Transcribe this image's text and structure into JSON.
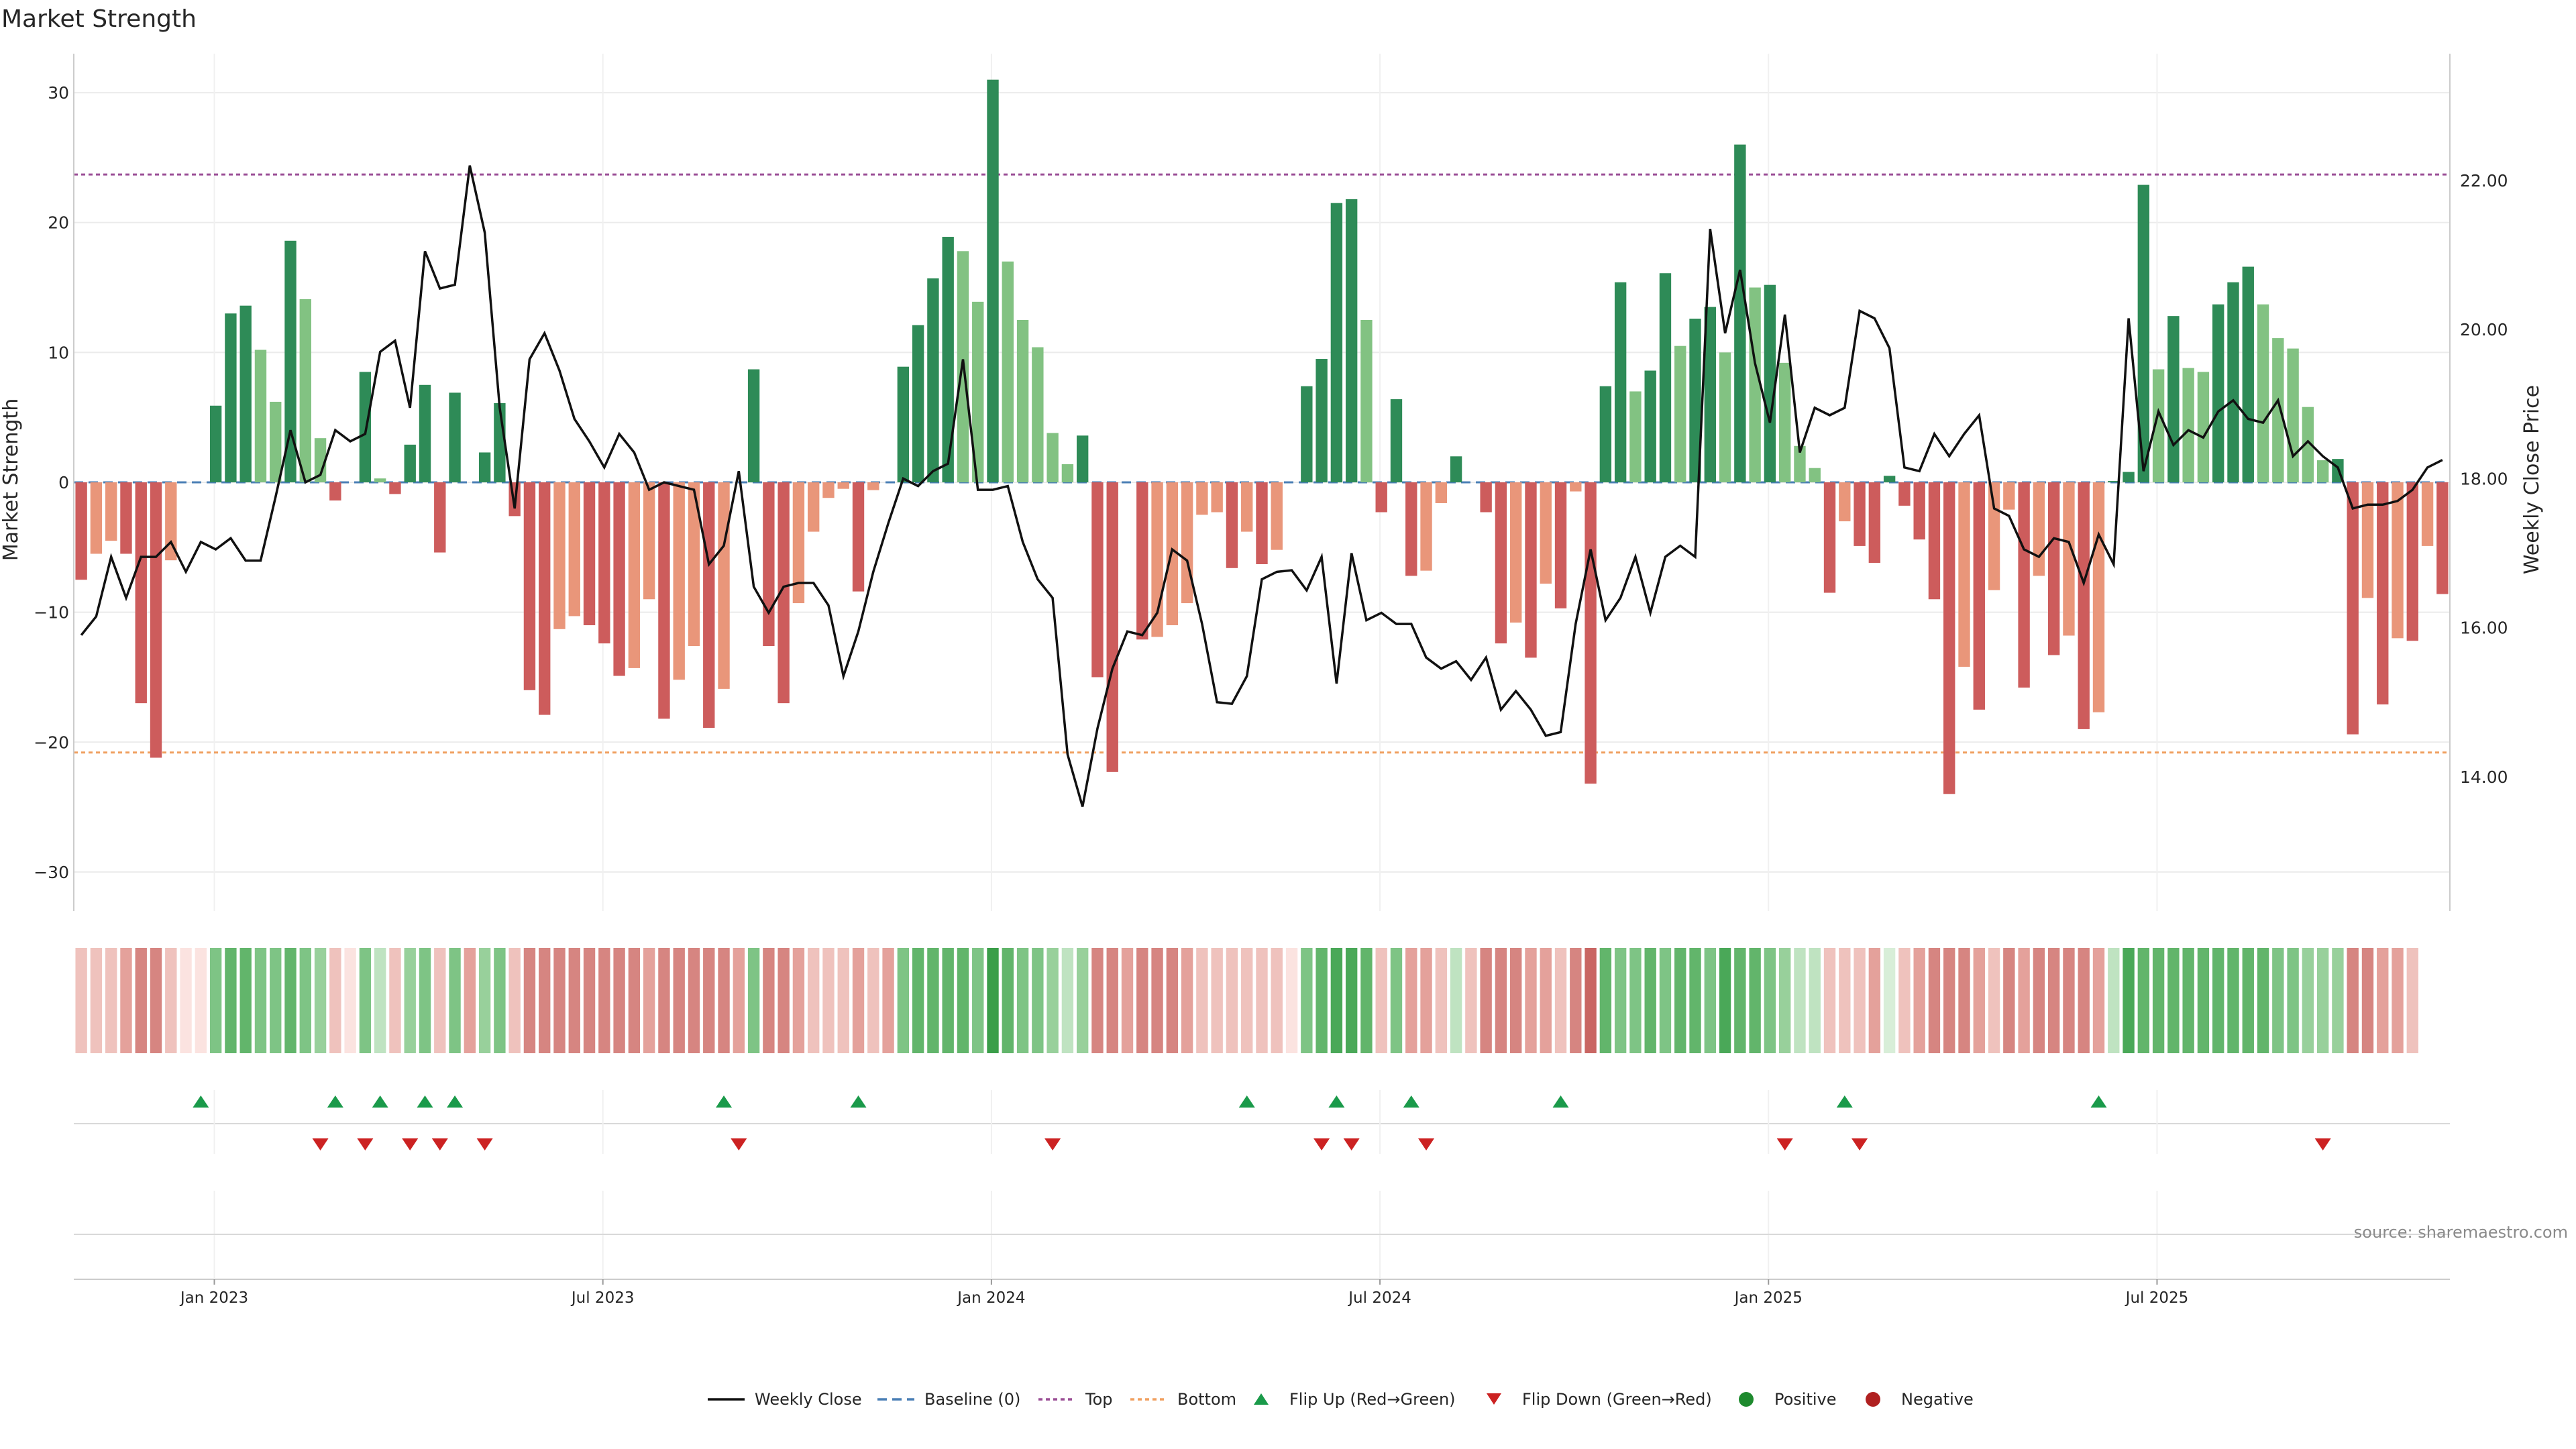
{
  "chart_data": {
    "type": "bar",
    "title": "Market Strength",
    "ylabel_left": "Market Strength",
    "ylabel_right": "Weekly Close Price",
    "ylim_left": [
      -33,
      33
    ],
    "ylim_right": [
      12.2,
      23.7
    ],
    "yticks_left": [
      "30",
      "20",
      "10",
      "0",
      "−10",
      "−20",
      "−30"
    ],
    "yticks_left_values": [
      30,
      20,
      10,
      0,
      -10,
      -20,
      -30
    ],
    "yticks_right": [
      "22.00",
      "20.00",
      "18.00",
      "16.00",
      "14.00"
    ],
    "yticks_right_values": [
      22,
      20,
      18,
      16,
      14
    ],
    "xticks": [
      "Jan 2023",
      "Jul 2023",
      "Jan 2024",
      "Jul 2024",
      "Jan 2025",
      "Jul 2025"
    ],
    "xticks_index": [
      9,
      35,
      61,
      87,
      113,
      139
    ],
    "top_level": 23.7,
    "bottom_level": -20.8,
    "strength": [
      -7.5,
      -5.5,
      -4.5,
      -5.5,
      -17,
      -21.2,
      -6,
      0,
      0,
      5.9,
      13,
      13.6,
      10.2,
      6.2,
      18.6,
      14.1,
      3.4,
      -1.4,
      0,
      8.5,
      0.3,
      -0.9,
      2.9,
      7.5,
      -5.4,
      6.9,
      0,
      2.3,
      6.1,
      -2.6,
      -16,
      -17.9,
      -11.3,
      -10.3,
      -11,
      -12.4,
      -14.9,
      -14.3,
      -9,
      -18.2,
      -15.2,
      -12.6,
      -18.9,
      -15.9,
      0,
      8.7,
      -12.6,
      -17,
      -9.3,
      -3.8,
      -1.2,
      -0.5,
      -8.4,
      -0.6,
      0,
      8.9,
      12.1,
      15.7,
      18.9,
      17.8,
      13.9,
      31,
      17,
      12.5,
      10.4,
      3.8,
      1.4,
      3.6,
      -15,
      -22.3,
      0,
      -12.1,
      -11.9,
      -11,
      -9.3,
      -2.5,
      -2.3,
      -6.6,
      -3.8,
      -6.3,
      -5.2,
      0,
      7.4,
      9.5,
      21.5,
      21.8,
      12.5,
      -2.3,
      6.4,
      -7.2,
      -6.8,
      -1.6,
      2,
      0,
      -2.3,
      -12.4,
      -10.8,
      -13.5,
      -7.8,
      -9.7,
      -0.7,
      -23.2,
      7.4,
      15.4,
      7,
      8.6,
      16.1,
      10.5,
      12.6,
      13.5,
      10,
      26,
      15,
      15.2,
      9.2,
      2.8,
      1.1,
      -8.5,
      -3,
      -4.9,
      -6.2,
      0.5,
      -1.8,
      -4.4,
      -9,
      -24,
      -14.2,
      -17.5,
      -8.3,
      -2.1,
      -15.8,
      -7.2,
      -13.3,
      -11.8,
      -19,
      -17.7,
      0.1,
      0.8,
      22.9,
      8.7,
      12.8,
      8.8,
      8.5,
      13.7,
      15.4,
      16.6,
      13.7,
      11.1,
      10.3,
      5.8,
      1.7,
      1.8,
      -19.4,
      -8.9,
      -17.1,
      -12,
      -12.2,
      -4.9,
      -8.6
    ],
    "weekly_close": [
      15.9,
      16.15,
      16.95,
      16.4,
      16.95,
      16.95,
      17.15,
      16.75,
      17.15,
      17.05,
      17.2,
      16.9,
      16.9,
      17.75,
      18.65,
      17.95,
      18.05,
      18.65,
      18.5,
      18.6,
      19.7,
      19.85,
      18.95,
      21.05,
      20.55,
      20.6,
      22.2,
      21.3,
      18.95,
      17.6,
      19.6,
      19.95,
      19.45,
      18.8,
      18.5,
      18.15,
      18.6,
      18.35,
      17.85,
      17.95,
      17.9,
      17.85,
      16.85,
      17.1,
      18.1,
      16.55,
      16.2,
      16.55,
      16.6,
      16.6,
      16.3,
      15.35,
      15.95,
      16.75,
      17.4,
      18.0,
      17.9,
      18.1,
      18.2,
      19.6,
      17.85,
      17.85,
      17.9,
      17.15,
      16.65,
      16.4,
      14.3,
      13.6,
      14.65,
      15.45,
      15.95,
      15.9,
      16.2,
      17.05,
      16.9,
      16.05,
      15.0,
      14.98,
      15.35,
      16.65,
      16.75,
      16.77,
      16.5,
      16.95,
      15.25,
      17.0,
      16.1,
      16.2,
      16.05,
      16.05,
      15.6,
      15.45,
      15.55,
      15.3,
      15.6,
      14.9,
      15.15,
      14.9,
      14.55,
      14.6,
      16.05,
      17.05,
      16.1,
      16.4,
      16.95,
      16.2,
      16.95,
      17.1,
      16.95,
      21.35,
      19.95,
      20.8,
      19.55,
      18.75,
      20.2,
      18.35,
      18.95,
      18.85,
      18.95,
      20.25,
      20.15,
      19.75,
      18.15,
      18.1,
      18.6,
      18.3,
      18.6,
      18.85,
      17.6,
      17.5,
      17.05,
      16.95,
      17.2,
      17.15,
      16.6,
      17.25,
      16.85,
      20.15,
      18.1,
      18.9,
      18.45,
      18.65,
      18.55,
      18.9,
      19.05,
      18.8,
      18.75,
      19.05,
      18.3,
      18.5,
      18.3,
      18.15,
      17.6,
      17.65,
      17.65,
      17.7,
      17.85,
      18.15,
      18.25
    ],
    "heat_levels": [
      2,
      2,
      2,
      3,
      4,
      4,
      2,
      1,
      1,
      5,
      6,
      6,
      5,
      5,
      6,
      5,
      4,
      2,
      1,
      5,
      3,
      2,
      4,
      5,
      2,
      5,
      3,
      4,
      5,
      2,
      4,
      4,
      4,
      4,
      4,
      4,
      4,
      4,
      3,
      4,
      4,
      4,
      4,
      4,
      3,
      5,
      4,
      4,
      3,
      2,
      2,
      2,
      3,
      2,
      3,
      5,
      6,
      6,
      6,
      6,
      5,
      8,
      6,
      5,
      5,
      4,
      3,
      4,
      4,
      4,
      3,
      4,
      4,
      4,
      3,
      2,
      2,
      2,
      2,
      2,
      2,
      1,
      5,
      6,
      7,
      7,
      6,
      2,
      5,
      3,
      3,
      2,
      3,
      2,
      4,
      4,
      4,
      3,
      3,
      2,
      4,
      5,
      6,
      5,
      5,
      6,
      5,
      6,
      6,
      5,
      7,
      6,
      6,
      5,
      4,
      3,
      3,
      2,
      2,
      2,
      3,
      2,
      2,
      3,
      4,
      4,
      4,
      3,
      2,
      4,
      3,
      4,
      4,
      4,
      4,
      3,
      3,
      7,
      6,
      6,
      6,
      6,
      6,
      6,
      6,
      6,
      6,
      5,
      5,
      4,
      4,
      4,
      4,
      4,
      3,
      3,
      2
    ],
    "flip_up_index": [
      8,
      17,
      20,
      23,
      25,
      43,
      52,
      78,
      84,
      89,
      99,
      118,
      135
    ],
    "flip_down_index": [
      16,
      19,
      22,
      24,
      27,
      44,
      65,
      83,
      85,
      90,
      114,
      119,
      150
    ],
    "legend": [
      "Weekly Close",
      "Baseline (0)",
      "Top",
      "Bottom",
      "Flip Up (Red→Green)",
      "Flip Down (Green→Red)",
      "Positive",
      "Negative"
    ],
    "legend_placement": "bottom-center",
    "grid": true
  },
  "source_text": "source: sharemaestro.com",
  "colors": {
    "pos_strong": "#2e8b57",
    "pos_weak": "#82c282",
    "neg_strong": "#cd5c5c",
    "neg_weak": "#e9967a",
    "price_line": "#111111",
    "baseline": "#4a7fb5",
    "top_line": "#9b4f96",
    "bottom_line": "#f0a060",
    "flip_up": "#1a9a4a",
    "flip_down": "#cc2222",
    "positive_dot": "#1e8a2e",
    "negative_dot": "#b02020"
  }
}
